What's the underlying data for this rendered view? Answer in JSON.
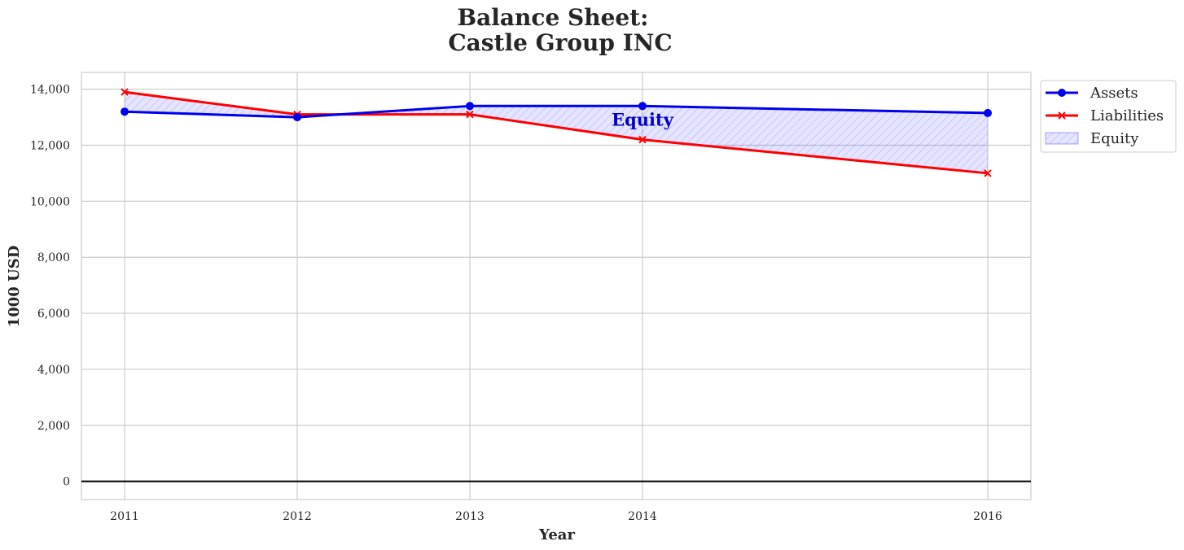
{
  "chart_data": {
    "type": "line",
    "title_line1": "Balance Sheet:",
    "title_line2": "Castle Group INC",
    "xlabel": "Year",
    "ylabel": "1000 USD",
    "x": [
      2011,
      2012,
      2013,
      2014,
      2016
    ],
    "xlim": [
      2010.75,
      2016.25
    ],
    "ylim": [
      -650,
      14600
    ],
    "yticks": [
      0,
      2000,
      4000,
      6000,
      8000,
      10000,
      12000,
      14000
    ],
    "ytick_labels": [
      "0",
      "2,000",
      "4,000",
      "6,000",
      "8,000",
      "10,000",
      "12,000",
      "14,000"
    ],
    "xtick_labels": [
      "2011",
      "2012",
      "2013",
      "2014",
      "2016"
    ],
    "grid": true,
    "zero_line": true,
    "series": [
      {
        "name": "Assets",
        "values": [
          13200,
          13000,
          13400,
          13400,
          13150
        ],
        "color": "#0000ee",
        "marker": "circle"
      },
      {
        "name": "Liabilities",
        "values": [
          13900,
          13100,
          13100,
          12200,
          11000
        ],
        "color": "#ff0000",
        "marker": "x"
      }
    ],
    "fill": {
      "name": "Equity",
      "color": "#0000ff",
      "between": [
        "Assets",
        "Liabilities"
      ]
    },
    "annotation": {
      "text": "Equity",
      "x": 2014,
      "y": 12700,
      "color": "#0000cc"
    },
    "legend": {
      "placement": "outside-top-right",
      "entries": [
        "Assets",
        "Liabilities",
        "Equity"
      ]
    }
  }
}
